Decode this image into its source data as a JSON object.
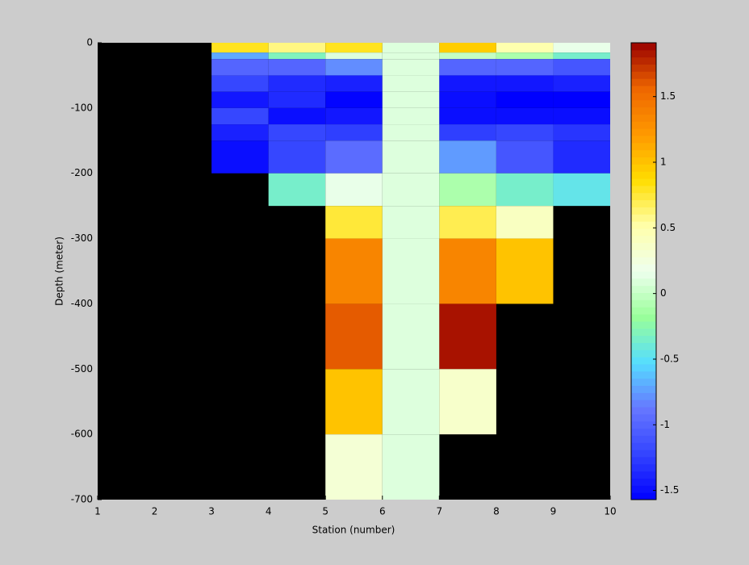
{
  "chart_data": {
    "type": "heatmap",
    "xlabel": "Station (number)",
    "ylabel": "Depth (meter)",
    "x": [
      1,
      2,
      3,
      4,
      5,
      6,
      7,
      8,
      9,
      10
    ],
    "y": [
      0,
      -15,
      -25,
      -50,
      -75,
      -100,
      -125,
      -150,
      -200,
      -250,
      -300,
      -400,
      -500,
      -600,
      -700
    ],
    "z": [
      [
        null,
        null,
        0.8,
        0.6,
        0.8,
        0.1,
        0.95,
        0.5,
        0.15
      ],
      [
        null,
        null,
        -0.7,
        -0.3,
        0.1,
        0.1,
        0.0,
        -0.1,
        -0.35
      ],
      [
        null,
        null,
        -1.0,
        -1.0,
        -0.8,
        0.1,
        -1.0,
        -1.0,
        -1.1
      ],
      [
        null,
        null,
        -1.2,
        -1.35,
        -1.4,
        0.1,
        -1.45,
        -1.45,
        -1.4
      ],
      [
        null,
        null,
        -1.45,
        -1.35,
        -1.55,
        0.1,
        -1.5,
        -1.57,
        -1.57
      ],
      [
        null,
        null,
        -1.2,
        -1.5,
        -1.45,
        0.1,
        -1.5,
        -1.5,
        -1.5
      ],
      [
        null,
        null,
        -1.4,
        -1.2,
        -1.25,
        0.1,
        -1.25,
        -1.2,
        -1.3
      ],
      [
        null,
        null,
        -1.5,
        -1.2,
        -0.95,
        0.1,
        -0.75,
        -1.1,
        -1.35
      ],
      [
        null,
        null,
        null,
        -0.35,
        0.15,
        0.1,
        -0.1,
        -0.35,
        -0.45
      ],
      [
        null,
        null,
        null,
        null,
        0.75,
        0.1,
        0.7,
        0.4,
        null
      ],
      [
        null,
        null,
        null,
        null,
        1.35,
        0.1,
        1.35,
        1.0,
        null
      ],
      [
        null,
        null,
        null,
        null,
        1.6,
        0.1,
        1.85,
        null,
        null
      ],
      [
        null,
        null,
        null,
        null,
        1.0,
        0.1,
        0.35,
        null,
        null
      ],
      [
        null,
        null,
        null,
        null,
        0.3,
        0.1,
        null,
        null,
        null
      ]
    ],
    "xlim": [
      1,
      10
    ],
    "xticks": [
      1,
      2,
      3,
      4,
      5,
      6,
      7,
      8,
      9,
      10
    ],
    "ylim": [
      -700,
      0
    ],
    "yticks": [
      0,
      -100,
      -200,
      -300,
      -400,
      -500,
      -600,
      -700
    ],
    "clim": [
      -1.57,
      1.91
    ],
    "cticks": [
      -1.5,
      -1,
      -0.5,
      0,
      0.5,
      1,
      1.5
    ],
    "colormap": [
      "#0000ff",
      "#3344ff",
      "#6677ff",
      "#55ddff",
      "#99ff99",
      "#eeffee",
      "#ffffaa",
      "#ffdd00",
      "#ff9900",
      "#ee6600",
      "#990000"
    ],
    "background": "#000000"
  }
}
